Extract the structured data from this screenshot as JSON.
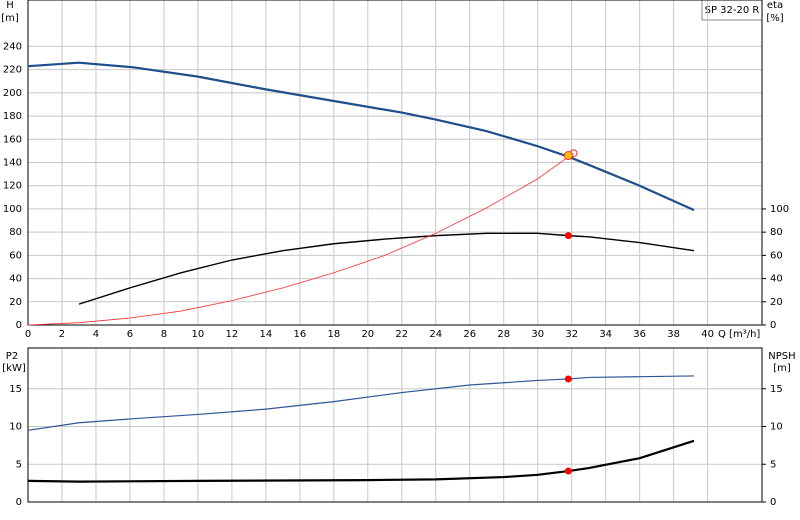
{
  "chart_data": [
    {
      "type": "line",
      "title": "SP 32-20 R",
      "xlabel": "Q [m³/h]",
      "ylabel": [
        "H",
        "[m]"
      ],
      "y2label": [
        "eta",
        "[%]"
      ],
      "xlim": [
        0,
        43.2
      ],
      "xticks": [
        0,
        2,
        4,
        6,
        8,
        10,
        12,
        14,
        16,
        18,
        20,
        22,
        24,
        26,
        28,
        30,
        32,
        34,
        36,
        38,
        40
      ],
      "ylim": [
        0,
        280
      ],
      "yticks": [
        0,
        20,
        40,
        60,
        80,
        100,
        120,
        140,
        160,
        180,
        200,
        220,
        240
      ],
      "y2lim": [
        0,
        280
      ],
      "y2ticks": [
        0,
        20,
        40,
        60,
        80,
        100
      ],
      "grid": true,
      "xtick_labels": true,
      "series": [
        {
          "color": "#1f4e8c",
          "width": 2.2,
          "x": [
            0,
            3,
            6.2,
            10,
            14,
            18,
            22,
            24,
            27,
            30,
            31.8,
            33,
            36,
            39.2
          ],
          "values": [
            223,
            226,
            222,
            214,
            203,
            193,
            183,
            177,
            167,
            154,
            145,
            138,
            120,
            99
          ]
        },
        {
          "color": "#000000",
          "width": 1.4,
          "axis": "y2",
          "x": [
            3,
            6,
            9,
            12,
            15,
            18,
            21,
            24,
            27,
            30,
            31.8,
            33,
            36,
            39.2
          ],
          "values": [
            18,
            32,
            45,
            56,
            64,
            70,
            74,
            77,
            79,
            79,
            77,
            76,
            71,
            64
          ]
        },
        {
          "color": "#ff3030",
          "width": 0.8,
          "x": [
            0,
            3,
            6,
            9,
            12,
            15,
            18,
            21,
            24,
            27,
            30,
            32.1
          ],
          "values": [
            0,
            2,
            6,
            12,
            21,
            32,
            45,
            60,
            79,
            101,
            126,
            148
          ]
        },
        {
          "color": "#ff3030",
          "marker": "open",
          "x": [
            32.1
          ],
          "values": [
            148
          ]
        },
        {
          "color": "#ffc000",
          "marker": "duty",
          "x": [
            31.8
          ],
          "values": [
            146
          ]
        },
        {
          "color": "#ff0000",
          "marker": "dot",
          "axis": "y2",
          "x": [
            31.8
          ],
          "values": [
            77
          ]
        }
      ]
    },
    {
      "type": "line",
      "ylabel": [
        "P2",
        "[kW]"
      ],
      "y2label": [
        "NPSH",
        "[m]"
      ],
      "xlim": [
        0,
        43.2
      ],
      "xticks": [
        0,
        2,
        4,
        6,
        8,
        10,
        12,
        14,
        16,
        18,
        20,
        22,
        24,
        26,
        28,
        30,
        32,
        34,
        36,
        38,
        40
      ],
      "ylim": [
        0,
        20.4
      ],
      "yticks": [
        0,
        5,
        10,
        15
      ],
      "y2lim": [
        0,
        20.4
      ],
      "y2ticks": [
        0,
        5,
        10,
        15
      ],
      "grid": true,
      "xtick_labels": false,
      "series": [
        {
          "color": "#2f5597",
          "width": 1.2,
          "x": [
            0,
            3,
            6,
            10,
            14,
            18,
            22,
            26,
            30,
            31.8,
            33,
            36,
            39.2
          ],
          "values": [
            9.5,
            10.5,
            11,
            11.6,
            12.3,
            13.3,
            14.5,
            15.5,
            16.1,
            16.3,
            16.5,
            16.6,
            16.7
          ]
        },
        {
          "color": "#000000",
          "width": 2.2,
          "axis": "y2",
          "x": [
            0,
            3,
            10,
            20,
            24,
            28,
            30,
            31.8,
            33,
            36,
            39.2
          ],
          "values": [
            2.8,
            2.7,
            2.8,
            2.9,
            3.0,
            3.3,
            3.6,
            4.1,
            4.5,
            5.8,
            8.1
          ]
        },
        {
          "color": "#ff0000",
          "marker": "dot",
          "x": [
            31.8
          ],
          "values": [
            16.3
          ]
        },
        {
          "color": "#ff0000",
          "marker": "dot",
          "axis": "y2",
          "x": [
            31.8
          ],
          "values": [
            4.1
          ]
        }
      ]
    }
  ]
}
